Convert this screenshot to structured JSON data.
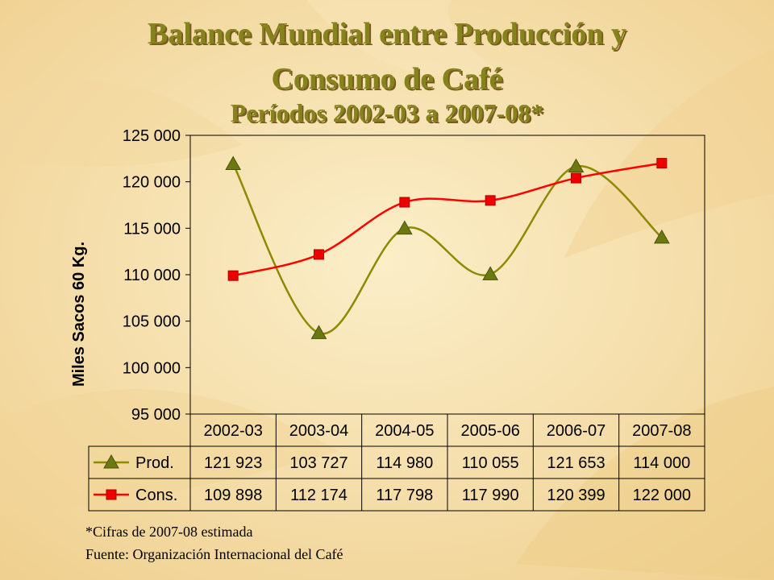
{
  "slide": {
    "title_line1": "Balance Mundial entre Producción y",
    "title_line2": "Consumo de Café",
    "subtitle": "Períodos 2002-03 a 2007-08*",
    "footnote": "*Cifras de 2007-08 estimada",
    "source": "Fuente: Organización Internacional del Café"
  },
  "colors": {
    "background": "#f6e2ae",
    "title": "#85831c",
    "prod_line": "#8b8a00",
    "prod_marker": "#6b7a10",
    "cons_line": "#ff0000",
    "cons_marker": "#ee0000"
  },
  "chart_data": {
    "type": "line",
    "ylabel": "Miles Sacos 60 Kg.",
    "xlabel": "",
    "ylim": [
      95000,
      125000
    ],
    "ytick_step": 5000,
    "ytick_labels": [
      "95 000",
      "100 000",
      "105 000",
      "110 000",
      "115 000",
      "120 000",
      "125 000"
    ],
    "categories": [
      "2002-03",
      "2003-04",
      "2004-05",
      "2005-06",
      "2006-07",
      "2007-08"
    ],
    "grid": false,
    "data_table": true,
    "series": [
      {
        "name": "Prod.",
        "marker": "triangle",
        "values": [
          121923,
          103727,
          114980,
          110055,
          121653,
          114000
        ],
        "labels": [
          "121 923",
          "103 727",
          "114 980",
          "110 055",
          "121 653",
          "114 000"
        ]
      },
      {
        "name": "Cons.",
        "marker": "square",
        "values": [
          109898,
          112174,
          117798,
          117990,
          120399,
          122000
        ],
        "labels": [
          "109 898",
          "112 174",
          "117 798",
          "117 990",
          "120 399",
          "122 000"
        ]
      }
    ]
  }
}
